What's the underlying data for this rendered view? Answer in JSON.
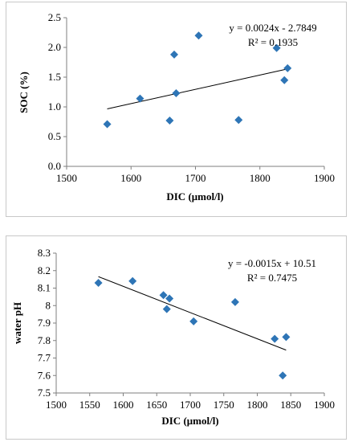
{
  "chart_data": [
    {
      "type": "scatter",
      "xlabel": "DIC (μmol/l)",
      "ylabel": "SOC (%)",
      "xlim": [
        1500,
        1900
      ],
      "ylim": [
        0.0,
        2.5
      ],
      "x_ticks": [
        "1500",
        "1600",
        "1700",
        "1800",
        "1900"
      ],
      "y_ticks": [
        "0.0",
        "0.5",
        "1.0",
        "1.5",
        "2.0",
        "2.5"
      ],
      "x_tick_values": [
        1500,
        1600,
        1700,
        1800,
        1900
      ],
      "y_tick_values": [
        0.0,
        0.5,
        1.0,
        1.5,
        2.0,
        2.5
      ],
      "points": [
        {
          "x": 1563,
          "y": 0.71
        },
        {
          "x": 1614,
          "y": 1.14
        },
        {
          "x": 1660,
          "y": 0.77
        },
        {
          "x": 1667,
          "y": 1.88
        },
        {
          "x": 1670,
          "y": 1.23
        },
        {
          "x": 1705,
          "y": 2.2
        },
        {
          "x": 1767,
          "y": 0.78
        },
        {
          "x": 1826,
          "y": 1.99
        },
        {
          "x": 1838,
          "y": 1.45
        },
        {
          "x": 1843,
          "y": 1.65
        }
      ],
      "trendline": {
        "slope": 0.0024,
        "intercept": -2.7849,
        "x_from": 1563,
        "x_to": 1843
      },
      "equation": "y = 0.0024x - 2.7849",
      "r_squared": "R² = 0.1935",
      "grid": false,
      "marker_color": "#2e75b6"
    },
    {
      "type": "scatter",
      "xlabel": "DIC (μmol/l)",
      "ylabel": "water pH",
      "xlim": [
        1500,
        1900
      ],
      "ylim": [
        7.5,
        8.3
      ],
      "x_ticks": [
        "1500",
        "1550",
        "1600",
        "1650",
        "1700",
        "1750",
        "1800",
        "1850",
        "1900"
      ],
      "y_ticks": [
        "7.5",
        "7.6",
        "7.7",
        "7.8",
        "7.9",
        "8",
        "8.1",
        "8.2",
        "8.3"
      ],
      "x_tick_values": [
        1500,
        1550,
        1600,
        1650,
        1700,
        1750,
        1800,
        1850,
        1900
      ],
      "y_tick_values": [
        7.5,
        7.6,
        7.7,
        7.8,
        7.9,
        8.0,
        8.1,
        8.2,
        8.3
      ],
      "points": [
        {
          "x": 1563,
          "y": 8.13
        },
        {
          "x": 1614,
          "y": 8.14
        },
        {
          "x": 1660,
          "y": 8.06
        },
        {
          "x": 1665,
          "y": 7.98
        },
        {
          "x": 1669,
          "y": 8.04
        },
        {
          "x": 1705,
          "y": 7.91
        },
        {
          "x": 1767,
          "y": 8.02
        },
        {
          "x": 1826,
          "y": 7.81
        },
        {
          "x": 1838,
          "y": 7.6
        },
        {
          "x": 1843,
          "y": 7.82
        }
      ],
      "trendline": {
        "slope": -0.0015,
        "intercept": 10.51,
        "x_from": 1563,
        "x_to": 1843
      },
      "equation": "y = -0.0015x + 10.51",
      "r_squared": "R² = 0.7475",
      "grid": false,
      "marker_color": "#2e75b6"
    }
  ]
}
